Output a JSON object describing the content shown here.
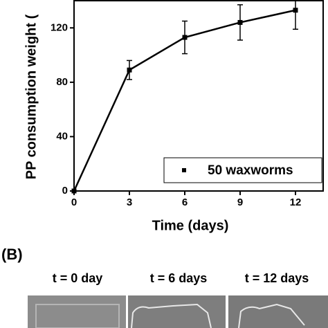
{
  "chart_data": {
    "type": "line",
    "x_label": "Time (days)",
    "y_label": "PP consumption weight (",
    "x": [
      0,
      3,
      6,
      9,
      12
    ],
    "series": [
      {
        "name": "50 waxworms",
        "color": "#000000",
        "values": [
          0,
          89,
          113,
          124,
          133
        ],
        "errors": [
          null,
          7,
          12,
          13,
          14
        ]
      }
    ],
    "xlim": [
      0,
      13.5
    ],
    "xticks": [
      0,
      3,
      6,
      9,
      12
    ],
    "ylim": [
      0,
      140
    ],
    "yticks": [
      0,
      40,
      80,
      120
    ],
    "legend": "lower right"
  },
  "panel_b": {
    "label": "(B)",
    "captions": [
      "t = 0 day",
      "t = 6 days",
      "t = 12 days"
    ]
  }
}
